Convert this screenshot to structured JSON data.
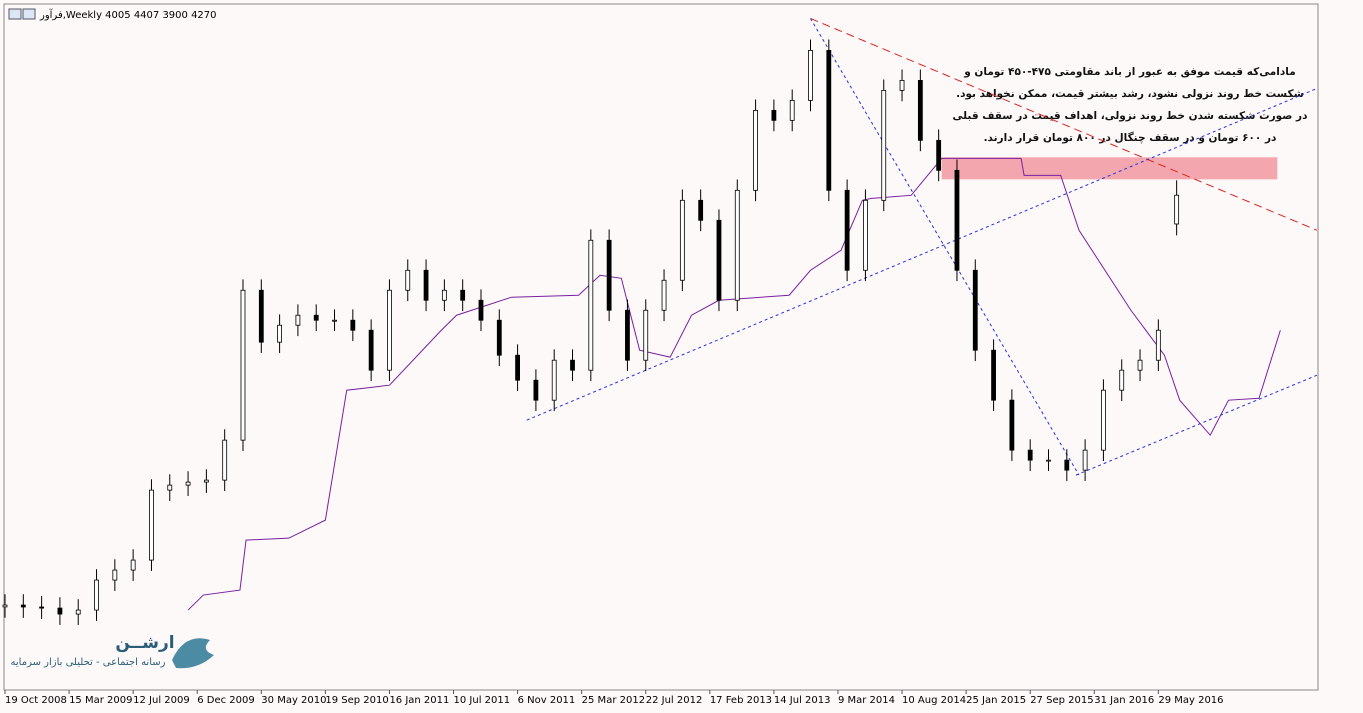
{
  "chart_data": {
    "type": "candlestick",
    "header": "فرآور,Weekly  4005 4407 3900 4270",
    "x": [
      0,
      6,
      12,
      18,
      24,
      30,
      36,
      42,
      48,
      54,
      60,
      66,
      72,
      78,
      84,
      90,
      96,
      102,
      108,
      114,
      120,
      126,
      132,
      138,
      144,
      150,
      156,
      162,
      168,
      174,
      180,
      186,
      192,
      198,
      204,
      210,
      216,
      222,
      228,
      234,
      240,
      246,
      252,
      258,
      264,
      270,
      276,
      282,
      288,
      294,
      300,
      306,
      312,
      318,
      324,
      330,
      336,
      342,
      348,
      354,
      360,
      366,
      372,
      378,
      384
    ],
    "open": [
      480,
      497,
      479,
      469,
      414,
      451,
      727,
      819,
      911,
      1555,
      1601,
      1629,
      1647,
      2015,
      3395,
      2917,
      3073,
      3165,
      3119,
      3119,
      3027,
      2659,
      3395,
      3579,
      3303,
      3395,
      3303,
      3119,
      2797,
      2567,
      2383,
      2751,
      2659,
      3855,
      3211,
      2751,
      3211,
      3487,
      4223,
      4039,
      3303,
      4315,
      5051,
      4959,
      5143,
      5603,
      4315,
      3579,
      4223,
      5235,
      5327,
      4775,
      4499,
      3579,
      2843,
      2383,
      1923,
      1831,
      1831,
      1739,
      1923,
      2475,
      2659,
      2751,
      4005
    ],
    "high": [
      597,
      597,
      579,
      569,
      551,
      827,
      919,
      1011,
      1655,
      1701,
      1729,
      1747,
      2115,
      3495,
      3495,
      3173,
      3265,
      3265,
      3219,
      3219,
      3127,
      3495,
      3679,
      3679,
      3495,
      3495,
      3403,
      3219,
      2897,
      2667,
      2851,
      2851,
      3955,
      3955,
      3311,
      3311,
      3587,
      4323,
      4323,
      4139,
      4415,
      5151,
      5151,
      5243,
      5703,
      5703,
      4415,
      4323,
      5335,
      5427,
      5427,
      4875,
      4599,
      3679,
      2943,
      2483,
      2023,
      1931,
      1931,
      2023,
      2575,
      2759,
      2851,
      3127,
      4407
    ],
    "low": [
      380,
      379,
      369,
      314,
      314,
      351,
      627,
      719,
      811,
      1455,
      1501,
      1529,
      1547,
      1915,
      2817,
      2817,
      2973,
      3019,
      3019,
      2927,
      2559,
      2559,
      3295,
      3203,
      3203,
      3203,
      3019,
      2697,
      2467,
      2283,
      2283,
      2559,
      2559,
      3111,
      2651,
      2651,
      3111,
      3387,
      3939,
      3203,
      3203,
      4215,
      4859,
      4859,
      5043,
      4215,
      3479,
      3479,
      4123,
      5135,
      4675,
      4399,
      3479,
      2743,
      2283,
      1823,
      1731,
      1731,
      1639,
      1639,
      1823,
      2375,
      2559,
      2651,
      3900
    ],
    "close": [
      497,
      479,
      469,
      414,
      451,
      727,
      819,
      911,
      1555,
      1601,
      1629,
      1647,
      2015,
      3395,
      2917,
      3073,
      3165,
      3119,
      3119,
      3027,
      2659,
      3395,
      3579,
      3303,
      3395,
      3303,
      3119,
      2797,
      2567,
      2383,
      2751,
      2659,
      3855,
      3211,
      2751,
      3211,
      3487,
      4223,
      4039,
      3303,
      4315,
      5051,
      4959,
      5143,
      5603,
      4315,
      3579,
      4223,
      5235,
      5327,
      4775,
      4499,
      3579,
      2843,
      2383,
      1923,
      1831,
      1831,
      1739,
      1923,
      2475,
      2659,
      2751,
      3027,
      4270
    ],
    "up_color": "#ffffff",
    "down_color": "#000000",
    "outline_color": "#000000",
    "xlim": [
      0,
      430
    ],
    "ylim": [
      -285,
      5975
    ],
    "xticks": [
      {
        "value": 0,
        "label": "19 Oct 2008"
      },
      {
        "value": 21,
        "label": "15 Mar 2009"
      },
      {
        "value": 42,
        "label": "12 Jul 2009"
      },
      {
        "value": 63,
        "label": "6 Dec 2009"
      },
      {
        "value": 84,
        "label": "30 May 2010"
      },
      {
        "value": 105,
        "label": "19 Sep 2010"
      },
      {
        "value": 126,
        "label": "16 Jan 2011"
      },
      {
        "value": 147,
        "label": "10 Jul 2011"
      },
      {
        "value": 168,
        "label": "6 Nov 2011"
      },
      {
        "value": 189,
        "label": "25 Mar 2012"
      },
      {
        "value": 210,
        "label": "22 Jul 2012"
      },
      {
        "value": 231,
        "label": "17 Feb 2013"
      },
      {
        "value": 252,
        "label": "14 Jul 2013"
      },
      {
        "value": 273,
        "label": "9 Mar 2014"
      },
      {
        "value": 294,
        "label": "10 Aug 2014"
      },
      {
        "value": 315,
        "label": "25 Jan 2015"
      },
      {
        "value": 336,
        "label": "27 Sep 2015"
      },
      {
        "value": 357,
        "label": "31 Jan 2016"
      },
      {
        "value": 378,
        "label": "29 May 2016"
      }
    ],
    "indicator": {
      "color": "#7a1fa2",
      "x": [
        60,
        65,
        77,
        79,
        93,
        105,
        112,
        126,
        143,
        148,
        166,
        188,
        195,
        202,
        208,
        218,
        225,
        234,
        257,
        264,
        274,
        281,
        284,
        297,
        307,
        333,
        334,
        346,
        352,
        369,
        380,
        385,
        395,
        401,
        411,
        418
      ],
      "values": [
        451,
        589,
        635,
        1095,
        1113,
        1279,
        2475,
        2521,
        3027,
        3165,
        3331,
        3349,
        3533,
        3505,
        2843,
        2779,
        3165,
        3303,
        3349,
        3579,
        3763,
        4223,
        4241,
        4269,
        4609,
        4609,
        4453,
        4453,
        3947,
        3211,
        2797,
        2383,
        2061,
        2383,
        2401,
        3027
      ]
    },
    "trendlines": [
      {
        "color": "#dd2222",
        "x": [
          264,
          430
        ],
        "values": [
          5897,
          3947
        ]
      },
      {
        "color": "#2233dd",
        "x": [
          264,
          352
        ],
        "values": [
          5897,
          1693
        ]
      },
      {
        "color": "#2233dd",
        "x": [
          171,
          430
        ],
        "values": [
          2199,
          5253
        ]
      },
      {
        "color": "#2233dd",
        "x": [
          351,
          430
        ],
        "values": [
          1693,
          2613
        ]
      }
    ],
    "zone": {
      "color": "#f4a6ae",
      "x": [
        307,
        417
      ],
      "values": [
        4416,
        4619
      ]
    },
    "annotation": [
      "مادامی‌که قیمت موفق به عبور از باند مقاومتی ۴۷۵-۴۵۰ تومان و",
      "شکست خط روند نزولی نشود، رشد بیشتر قیمت، ممکن نخواهد بود.",
      "در صورت شکسته شدن خط روند نزولی، اهداف قیمت در سقف قبلی",
      "در ۶۰۰ تومان و در سقف چنگال در ۸۰۰ تومان قرار دارند."
    ],
    "logo": {
      "name": "ارشــن",
      "tagline": "رسانه اجتماعی - تحلیلی بازار سرمایه"
    }
  }
}
